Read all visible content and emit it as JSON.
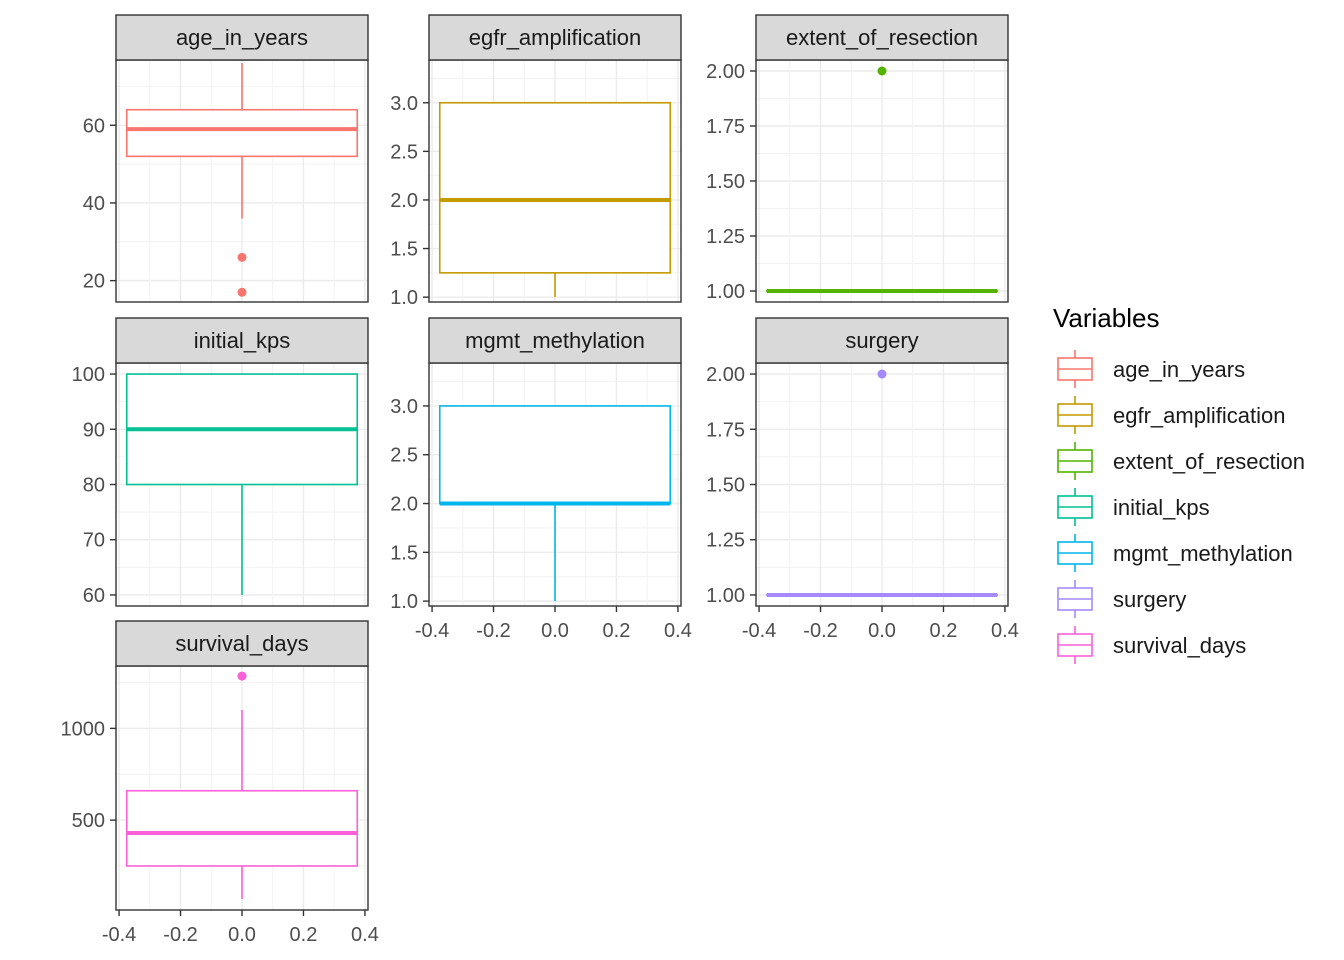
{
  "chart_data": {
    "type": "boxplot",
    "facets": [
      {
        "title": "age_in_years",
        "color": "#F8766D",
        "box": {
          "q1": 52,
          "median": 59,
          "q3": 64,
          "whisker_low": 36,
          "whisker_high": 76
        },
        "outliers": [
          26,
          17
        ],
        "ylim": [
          14.5,
          76.8
        ],
        "yticks": [
          20,
          40,
          60
        ],
        "ytick_labels": [
          "20",
          "40",
          "60"
        ],
        "xticks": [],
        "xtick_labels": []
      },
      {
        "title": "egfr_amplification",
        "color": "#C49A00",
        "box": {
          "q1": 1.25,
          "median": 2.0,
          "q3": 3.0,
          "whisker_low": 1.0,
          "whisker_high": 3.0
        },
        "outliers": [],
        "ylim": [
          0.95,
          3.44
        ],
        "yticks": [
          1.0,
          1.5,
          2.0,
          2.5,
          3.0
        ],
        "ytick_labels": [
          "1.0",
          "1.5",
          "2.0",
          "2.5",
          "3.0"
        ],
        "xticks": [],
        "xtick_labels": []
      },
      {
        "title": "extent_of_resection",
        "color": "#53B400",
        "box": {
          "q1": 1.0,
          "median": 1.0,
          "q3": 1.0,
          "whisker_low": 1.0,
          "whisker_high": 1.0
        },
        "outliers": [
          2.0
        ],
        "ylim": [
          0.95,
          2.05
        ],
        "yticks": [
          1.0,
          1.25,
          1.5,
          1.75,
          2.0
        ],
        "ytick_labels": [
          "1.00",
          "1.25",
          "1.50",
          "1.75",
          "2.00"
        ],
        "xticks": [],
        "xtick_labels": []
      },
      {
        "title": "initial_kps",
        "color": "#00C094",
        "box": {
          "q1": 80,
          "median": 90,
          "q3": 100,
          "whisker_low": 60,
          "whisker_high": 100
        },
        "outliers": [],
        "ylim": [
          58,
          102
        ],
        "yticks": [
          60,
          70,
          80,
          90,
          100
        ],
        "ytick_labels": [
          "60",
          "70",
          "80",
          "90",
          "100"
        ],
        "xticks": [],
        "xtick_labels": []
      },
      {
        "title": "mgmt_methylation",
        "color": "#00B6EB",
        "box": {
          "q1": 2.0,
          "median": 2.0,
          "q3": 3.0,
          "whisker_low": 1.0,
          "whisker_high": 3.0
        },
        "outliers": [],
        "ylim": [
          0.95,
          3.44
        ],
        "yticks": [
          1.0,
          1.5,
          2.0,
          2.5,
          3.0
        ],
        "ytick_labels": [
          "1.0",
          "1.5",
          "2.0",
          "2.5",
          "3.0"
        ],
        "xticks": [
          -0.4,
          -0.2,
          0.0,
          0.2,
          0.4
        ],
        "xtick_labels": [
          "-0.4",
          "-0.2",
          "0.0",
          "0.2",
          "0.4"
        ]
      },
      {
        "title": "surgery",
        "color": "#A58AFF",
        "box": {
          "q1": 1.0,
          "median": 1.0,
          "q3": 1.0,
          "whisker_low": 1.0,
          "whisker_high": 1.0
        },
        "outliers": [
          2.0
        ],
        "ylim": [
          0.95,
          2.05
        ],
        "yticks": [
          1.0,
          1.25,
          1.5,
          1.75,
          2.0
        ],
        "ytick_labels": [
          "1.00",
          "1.25",
          "1.50",
          "1.75",
          "2.00"
        ],
        "xticks": [
          -0.4,
          -0.2,
          0.0,
          0.2,
          0.4
        ],
        "xtick_labels": [
          "-0.4",
          "-0.2",
          "0.0",
          "0.2",
          "0.4"
        ]
      },
      {
        "title": "survival_days",
        "color": "#FB61D7",
        "box": {
          "q1": 250,
          "median": 430,
          "q3": 660,
          "whisker_low": 70,
          "whisker_high": 1100
        },
        "outliers": [
          1285
        ],
        "ylim": [
          10,
          1340
        ],
        "yticks": [
          500,
          1000
        ],
        "ytick_labels": [
          "500",
          "1000"
        ],
        "xticks": [
          -0.4,
          -0.2,
          0.0,
          0.2,
          0.4
        ],
        "xtick_labels": [
          "-0.4",
          "-0.2",
          "0.0",
          "0.2",
          "0.4"
        ]
      }
    ],
    "xlim": [
      -0.41,
      0.41
    ],
    "box_halfwidth": 0.375,
    "grid": true,
    "legend": {
      "title": "Variables",
      "position": "right",
      "entries": [
        {
          "label": "age_in_years",
          "color": "#F8766D"
        },
        {
          "label": "egfr_amplification",
          "color": "#C49A00"
        },
        {
          "label": "extent_of_resection",
          "color": "#53B400"
        },
        {
          "label": "initial_kps",
          "color": "#00C094"
        },
        {
          "label": "mgmt_methylation",
          "color": "#00B6EB"
        },
        {
          "label": "surgery",
          "color": "#A58AFF"
        },
        {
          "label": "survival_days",
          "color": "#FB61D7"
        }
      ]
    }
  }
}
